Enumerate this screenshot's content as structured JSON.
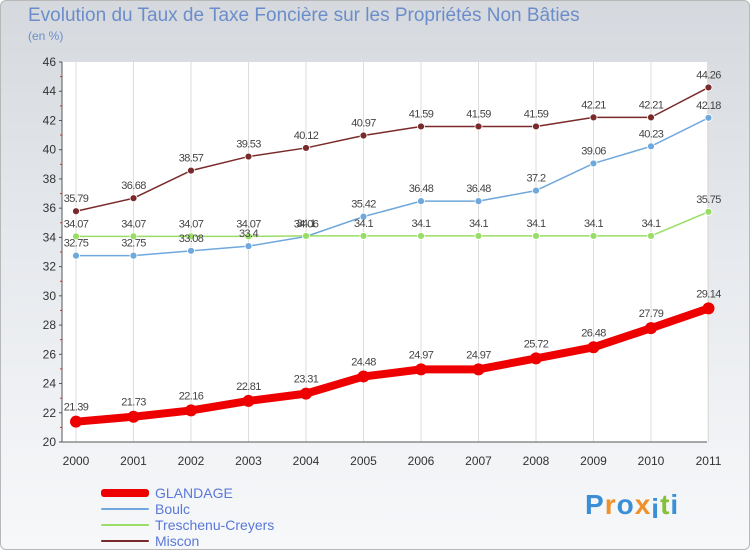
{
  "title": "Evolution du Taux de Taxe Foncière sur les Propriétés Non Bâties",
  "unit_label": "(en %)",
  "brand": {
    "letters": [
      "P",
      "r",
      "o",
      "x",
      "i",
      "t",
      "i"
    ],
    "colors": [
      "#3b8fd6",
      "#f0902a",
      "#3b8fd6",
      "#f0902a",
      "#3b8fd6",
      "#86bf3a",
      "#3b8fd6"
    ]
  },
  "chart_data": {
    "type": "line",
    "title": "Evolution du Taux de Taxe Foncière sur les Propriétés Non Bâties",
    "ylabel": "(en %)",
    "xlabel": "",
    "x": [
      "2000",
      "2001",
      "2002",
      "2003",
      "2004",
      "2005",
      "2006",
      "2007",
      "2008",
      "2009",
      "2010",
      "2011"
    ],
    "ylim": [
      20,
      46
    ],
    "yticks": [
      "20",
      "22",
      "24",
      "26",
      "28",
      "30",
      "32",
      "34",
      "36",
      "38",
      "40",
      "42",
      "44",
      "46"
    ],
    "grid": "vertical",
    "series": [
      {
        "name": "GLANDAGE",
        "color": "#ee0000",
        "emphasis": true,
        "values": [
          21.39,
          21.73,
          22.16,
          22.81,
          23.31,
          24.48,
          24.97,
          24.97,
          25.72,
          26.48,
          27.79,
          29.14
        ],
        "labels": [
          "21.39",
          "21.73",
          "22.16",
          "22.81",
          "23.31",
          "24.48",
          "24.97",
          "24.97",
          "25.72",
          "26.48",
          "27.79",
          "29.14"
        ]
      },
      {
        "name": "Boulc",
        "color": "#6fa8dc",
        "emphasis": false,
        "values": [
          32.75,
          32.75,
          33.08,
          33.4,
          34.06,
          35.42,
          36.48,
          36.48,
          37.2,
          39.06,
          40.23,
          42.18
        ],
        "labels": [
          "32.75",
          "32.75",
          "33.08",
          "33.4",
          "34.06",
          "35.42",
          "36.48",
          "36.48",
          "37.2",
          "39.06",
          "40.23",
          "42.18"
        ]
      },
      {
        "name": "Treschenu-Creyers",
        "color": "#99dd66",
        "emphasis": false,
        "values": [
          34.07,
          34.07,
          34.07,
          34.07,
          34.1,
          34.1,
          34.1,
          34.1,
          34.1,
          34.1,
          34.1,
          35.75
        ],
        "labels": [
          "34.07",
          "34.07",
          "34.07",
          "34.07",
          "34.1",
          "34.1",
          "34.1",
          "34.1",
          "34.1",
          "34.1",
          "34.1",
          "35.75"
        ]
      },
      {
        "name": "Miscon",
        "color": "#7a2a2a",
        "emphasis": false,
        "values": [
          35.79,
          36.68,
          38.57,
          39.53,
          40.12,
          40.97,
          41.59,
          41.59,
          41.59,
          42.21,
          42.21,
          44.26
        ],
        "labels": [
          "35.79",
          "36.68",
          "38.57",
          "39.53",
          "40.12",
          "40.97",
          "41.59",
          "41.59",
          "41.59",
          "42.21",
          "42.21",
          "44.26"
        ]
      }
    ],
    "legend_position": "bottom-left"
  }
}
